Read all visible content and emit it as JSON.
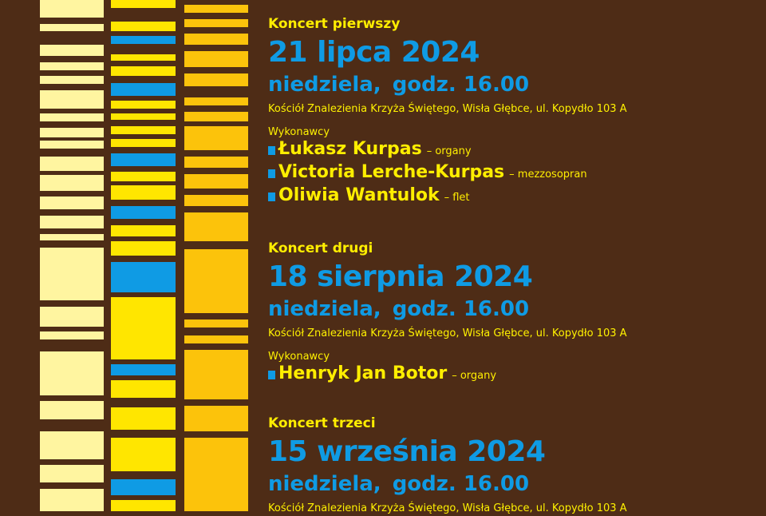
{
  "colors": {
    "background": "#4e2c16",
    "accent_blue": "#0f9be4",
    "accent_yellow": "#ffee00",
    "stripe_pale": "#fff5a0",
    "stripe_yellow": "#ffe600",
    "stripe_gold": "#fcc30b"
  },
  "concerts": [
    {
      "kicker": "Koncert pierwszy",
      "date": "21 lipca 2024",
      "day": "niedziela,",
      "time": "godz. 16.00",
      "venue": "Kościół Znalezienia Krzyża Świętego, Wisła Głębce, ul. Kopydło 103 A",
      "performers_label": "Wykonawcy",
      "performers": [
        {
          "name": "Łukasz Kurpas",
          "role": "– organy"
        },
        {
          "name": "Victoria Lerche-Kurpas",
          "role": "– mezzosopran"
        },
        {
          "name": "Oliwia Wantulok",
          "role": "– flet"
        }
      ]
    },
    {
      "kicker": "Koncert drugi",
      "date": "18 sierpnia 2024",
      "day": "niedziela,",
      "time": "godz. 16.00",
      "venue": "Kościół Znalezienia Krzyża Świętego, Wisła Głębce, ul. Kopydło 103 A",
      "performers_label": "Wykonawcy",
      "performers": [
        {
          "name": "Henryk Jan Botor",
          "role": "– organy"
        }
      ]
    },
    {
      "kicker": "Koncert trzeci",
      "date": "15 września 2024",
      "day": "niedziela,",
      "time": "godz. 16.00",
      "venue": "Kościół Znalezienia Krzyża Świętego, Wisła Głębce, ul. Kopydło 103 A"
    }
  ]
}
